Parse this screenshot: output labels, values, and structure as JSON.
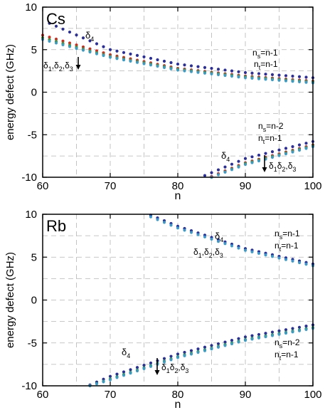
{
  "chart_data": [
    {
      "type": "scatter",
      "panel_label": "Cs",
      "xlabel": "n",
      "ylabel": "energy defect (GHz)",
      "xlim": [
        60,
        100
      ],
      "ylim": [
        -10,
        10
      ],
      "xticks": [
        60,
        70,
        80,
        90,
        100
      ],
      "yticks": [
        -10,
        -5,
        0,
        5,
        10
      ],
      "grid": "dashed",
      "series": [
        {
          "group": "ns=n-1, nt=n-1",
          "color": "#2b2f9e",
          "x_range": [
            61,
            100
          ],
          "values_at": {
            "61": 8.1,
            "70": 5.0,
            "80": 3.3,
            "90": 2.3,
            "100": 1.7
          }
        },
        {
          "group": "ns=n-1, nt=n-1",
          "color": "#d8281e",
          "x_range": [
            60,
            100
          ],
          "values_at": {
            "60": 6.7,
            "70": 4.4,
            "80": 2.8,
            "90": 1.9,
            "100": 1.3
          }
        },
        {
          "group": "ns=n-1, nt=n-1",
          "color": "#3a9a3a",
          "x_range": [
            60,
            100
          ],
          "values_at": {
            "60": 6.4,
            "70": 4.2,
            "80": 2.7,
            "90": 1.8,
            "100": 1.2
          }
        },
        {
          "group": "ns=n-1, nt=n-1",
          "color": "#3a9bc9",
          "x_range": [
            60,
            100
          ],
          "values_at": {
            "60": 6.2,
            "70": 4.1,
            "80": 2.6,
            "90": 1.7,
            "100": 1.1
          }
        },
        {
          "group": "ns=n-2, nt=n-1",
          "color": "#2b2f9e",
          "x_range": [
            84,
            100
          ],
          "values_at": {
            "84": -9.8,
            "90": -7.8,
            "100": -5.8
          }
        },
        {
          "group": "ns=n-2, nt=n-1",
          "color": "#d8281e",
          "x_range": [
            85,
            100
          ],
          "values_at": {
            "85": -9.9,
            "90": -8.3,
            "100": -6.2
          }
        },
        {
          "group": "ns=n-2, nt=n-1",
          "color": "#3a9a3a",
          "x_range": [
            85,
            100
          ],
          "values_at": {
            "85": -10.0,
            "90": -8.4,
            "100": -6.3
          }
        },
        {
          "group": "ns=n-2, nt=n-1",
          "color": "#3a9bc9",
          "x_range": [
            85,
            100
          ],
          "values_at": {
            "85": -10.0,
            "90": -8.5,
            "100": -6.4
          }
        }
      ],
      "annotations": {
        "d4_top": {
          "main": "δ",
          "sub": "4"
        },
        "d123_top": {
          "parts": [
            "δ",
            "1",
            ",δ",
            "2",
            ",δ",
            "3"
          ]
        },
        "ns_top": {
          "main": "n",
          "sub": "s",
          "rest": "=n-1"
        },
        "nt_top": {
          "main": "n",
          "sub": "t",
          "rest": "=n-1"
        },
        "ns_bot": {
          "main": "n",
          "sub": "s",
          "rest": "=n-2"
        },
        "nt_bot": {
          "main": "n",
          "sub": "t",
          "rest": "=n-1"
        },
        "d4_bot": {
          "main": "δ",
          "sub": "4"
        },
        "d123_bot": {
          "parts": [
            "δ",
            "1",
            "δ",
            "2",
            ",δ",
            "3"
          ]
        }
      }
    },
    {
      "type": "scatter",
      "panel_label": "Rb",
      "xlabel": "n",
      "ylabel": "energy defect (GHz)",
      "xlim": [
        60,
        100
      ],
      "ylim": [
        -10,
        10
      ],
      "xticks": [
        60,
        70,
        80,
        90,
        100
      ],
      "yticks": [
        -10,
        -5,
        0,
        5,
        10
      ],
      "grid": "dashed",
      "series": [
        {
          "group": "ns=n-1, nt=n-1",
          "color": "#2b2f9e",
          "x_range": [
            76,
            100
          ],
          "values_at": {
            "76": 9.9,
            "80": 8.6,
            "90": 6.0,
            "100": 4.2
          }
        },
        {
          "group": "ns=n-1, nt=n-1",
          "color": "#3a9bc9",
          "x_range": [
            76,
            100
          ],
          "values_at": {
            "76": 9.7,
            "80": 8.4,
            "90": 5.8,
            "100": 4.0
          }
        },
        {
          "group": "ns=n-2, nt=n-1",
          "color": "#2b2f9e",
          "x_range": [
            67,
            100
          ],
          "values_at": {
            "67": -9.9,
            "70": -8.9,
            "80": -6.3,
            "90": -4.3,
            "100": -2.9
          }
        },
        {
          "group": "ns=n-2, nt=n-1",
          "color": "#3a9a3a",
          "x_range": [
            67,
            100
          ],
          "values_at": {
            "67": -10.0,
            "70": -9.2,
            "80": -6.6,
            "90": -4.6,
            "100": -3.2
          }
        },
        {
          "group": "ns=n-2, nt=n-1",
          "color": "#3a9bc9",
          "x_range": [
            67,
            100
          ],
          "values_at": {
            "67": -10.0,
            "70": -9.3,
            "80": -6.7,
            "90": -4.7,
            "100": -3.3
          }
        }
      ],
      "annotations": {
        "d4_top": {
          "main": "δ",
          "sub": "4"
        },
        "d123_top": {
          "parts": [
            "δ",
            "1",
            ",δ",
            "2",
            ",δ",
            "3"
          ]
        },
        "ns_top": {
          "main": "n",
          "sub": "s",
          "rest": "=n-1"
        },
        "nt_top": {
          "main": "n",
          "sub": "t",
          "rest": "=n-1"
        },
        "ns_bot": {
          "main": "n",
          "sub": "s",
          "rest": "=n-2"
        },
        "nt_bot": {
          "main": "n",
          "sub": "t",
          "rest": "=n-1"
        },
        "d4_bot": {
          "main": "δ",
          "sub": "4"
        },
        "d123_bot": {
          "parts": [
            "δ",
            "1",
            "δ",
            "2",
            ",δ",
            "3"
          ]
        }
      }
    }
  ]
}
